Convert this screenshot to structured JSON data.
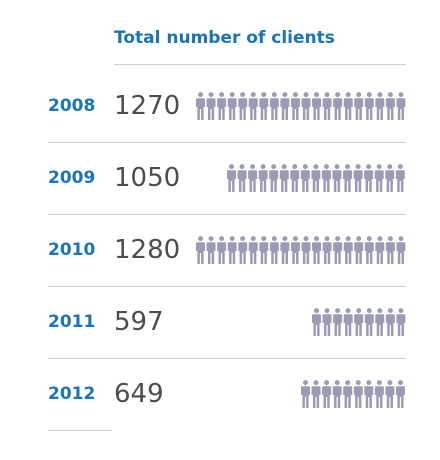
{
  "chart_data": {
    "type": "pictogram",
    "title": "Total number of clients",
    "icon": "person-icon",
    "icon_color": "#9c9bb4",
    "accent_color": "#1a75b8",
    "value_color": "#4d4d4d",
    "rows": [
      {
        "year": "2008",
        "value_label": "1270",
        "value": 1270,
        "icons": 20
      },
      {
        "year": "2009",
        "value_label": "1050",
        "value": 1050,
        "icons": 17
      },
      {
        "year": "2010",
        "value_label": "1280",
        "value": 1280,
        "icons": 20
      },
      {
        "year": "2011",
        "value_label": "597",
        "value": 597,
        "icons": 9
      },
      {
        "year": "2012",
        "value_label": "649",
        "value": 649,
        "icons": 10
      }
    ]
  }
}
